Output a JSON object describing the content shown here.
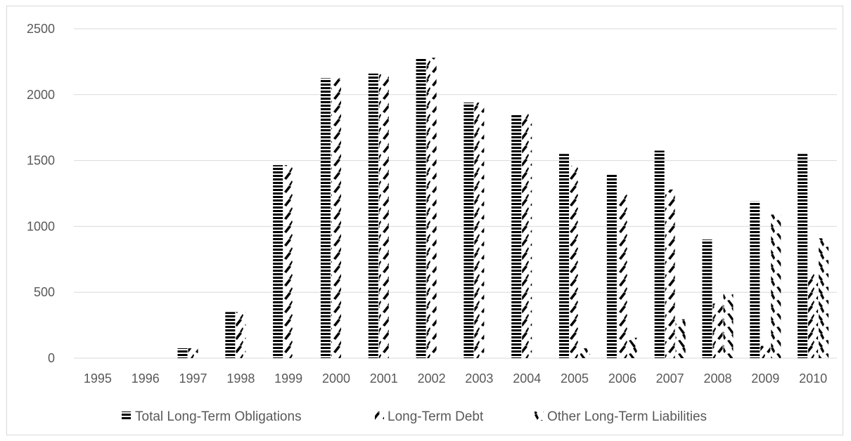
{
  "chart_data": {
    "type": "bar",
    "categories": [
      "1995",
      "1996",
      "1997",
      "1998",
      "1999",
      "2000",
      "2001",
      "2002",
      "2003",
      "2004",
      "2005",
      "2006",
      "2007",
      "2008",
      "2009",
      "2010"
    ],
    "series": [
      {
        "name": "Total Long-Term Obligations",
        "pattern": "horizontal-stripes",
        "values": [
          0,
          0,
          75,
          350,
          1465,
          2125,
          2160,
          2280,
          1940,
          1845,
          1550,
          1400,
          1575,
          900,
          1190,
          1550
        ]
      },
      {
        "name": "Long-Term Debt",
        "pattern": "forward-diagonal",
        "values": [
          0,
          0,
          75,
          350,
          1465,
          2125,
          2160,
          2280,
          1940,
          1855,
          1460,
          1240,
          1280,
          415,
          95,
          640
        ]
      },
      {
        "name": "Other Long-Term Liabilities",
        "pattern": "backward-diagonal",
        "values": [
          0,
          0,
          0,
          0,
          0,
          0,
          0,
          0,
          0,
          0,
          75,
          155,
          295,
          485,
          1090,
          910
        ]
      }
    ],
    "yticks": [
      "0",
      "500",
      "1000",
      "1500",
      "2000",
      "2500"
    ],
    "ylim": [
      0,
      2500
    ],
    "grid": true,
    "legend": "bottom",
    "title": "",
    "xlabel": "",
    "ylabel": "",
    "colors": {
      "bar_ink": "#000000",
      "grid": "#d9d9d9",
      "text": "#595959",
      "border": "#d9d9d9"
    }
  }
}
